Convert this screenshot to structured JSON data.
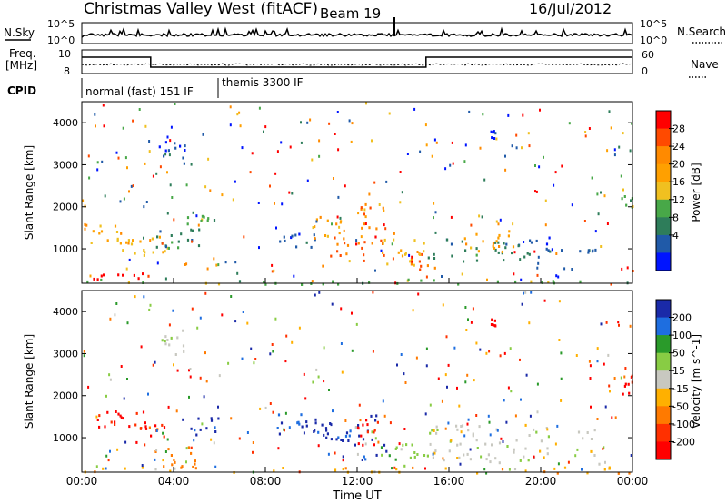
{
  "header": {
    "title": "Christmas Valley West (fitACF)",
    "beam": "Beam 19",
    "date": "16/Jul/2012"
  },
  "top_panels": {
    "nsky_label": "N.Sky",
    "nsky_ticks": [
      "10^5",
      "10^0"
    ],
    "nsearch_label": "N.Search",
    "nsearch_ticks": [
      "10^5",
      "10^0"
    ],
    "freq_label_1": "Freq.",
    "freq_label_2": "[MHz]",
    "freq_ticks": [
      "10",
      "8"
    ],
    "nave_label": "Nave",
    "nave_ticks": [
      "60",
      "0"
    ],
    "cpid_label": "CPID",
    "cpid_modes": [
      {
        "label": "normal (fast) 151 IF",
        "start_hour": 0.0
      },
      {
        "label": "themis 3300 IF",
        "start_hour": 6.0
      }
    ],
    "freq_steps": [
      {
        "start_hour": 0.0,
        "end_hour": 3.0,
        "level": "high"
      },
      {
        "start_hour": 3.0,
        "end_hour": 15.0,
        "level": "low"
      },
      {
        "start_hour": 15.0,
        "end_hour": 24.0,
        "level": "high"
      }
    ]
  },
  "chart_data": [
    {
      "type": "heatmap",
      "title": "",
      "xlabel": "Time UT",
      "ylabel": "Slant Range [km]",
      "xlim": [
        0,
        24
      ],
      "ylim": [
        180,
        4500
      ],
      "x_tick_labels": [
        "00:00",
        "04:00",
        "08:00",
        "12:00",
        "16:00",
        "20:00",
        "00:00"
      ],
      "y_tick_labels": [
        "1000",
        "2000",
        "3000",
        "4000"
      ],
      "colorbar": {
        "label": "Power [dB]",
        "tick_labels": [
          "28",
          "24",
          "20",
          "16",
          "12",
          "8",
          "4"
        ],
        "colors": [
          "#ff0000",
          "#ff4a00",
          "#ff8a00",
          "#ffa000",
          "#f0c020",
          "#48a848",
          "#2e7d5a",
          "#205aa8",
          "#0014ff"
        ]
      },
      "regions": [
        {
          "t0": 0.0,
          "t1": 2.8,
          "r0": 1150,
          "r1": 1650,
          "level": 3
        },
        {
          "t0": 0.3,
          "t1": 3.2,
          "r0": 300,
          "r1": 450,
          "level": 0
        },
        {
          "t0": 1.7,
          "t1": 3.8,
          "r0": 850,
          "r1": 1350,
          "level": 4
        },
        {
          "t0": 3.2,
          "t1": 5.6,
          "r0": 1050,
          "r1": 1500,
          "level": 6
        },
        {
          "t0": 3.3,
          "t1": 4.5,
          "r0": 3000,
          "r1": 3600,
          "level": 7
        },
        {
          "t0": 4.5,
          "t1": 6.0,
          "r0": 1550,
          "r1": 1900,
          "level": 5
        },
        {
          "t0": 0.0,
          "t1": 24.0,
          "r0": 180,
          "r1": 300,
          "level": 5
        },
        {
          "t0": 8.2,
          "t1": 10.2,
          "r0": 1050,
          "r1": 1400,
          "level": 7
        },
        {
          "t0": 10.0,
          "t1": 11.3,
          "r0": 1250,
          "r1": 1800,
          "level": 3
        },
        {
          "t0": 10.8,
          "t1": 13.2,
          "r0": 700,
          "r1": 1350,
          "level": 1
        },
        {
          "t0": 12.1,
          "t1": 13.2,
          "r0": 1500,
          "r1": 2150,
          "level": 2
        },
        {
          "t0": 13.0,
          "t1": 15.0,
          "r0": 650,
          "r1": 1250,
          "level": 4
        },
        {
          "t0": 14.2,
          "t1": 15.4,
          "r0": 500,
          "r1": 900,
          "level": 1
        },
        {
          "t0": 15.0,
          "t1": 19.5,
          "r0": 750,
          "r1": 1250,
          "level": 6
        },
        {
          "t0": 16.5,
          "t1": 18.8,
          "r0": 900,
          "r1": 1450,
          "level": 3
        },
        {
          "t0": 19.0,
          "t1": 22.5,
          "r0": 850,
          "r1": 1300,
          "level": 7
        },
        {
          "t0": 23.5,
          "t1": 24.0,
          "r0": 2000,
          "r1": 2500,
          "level": 5
        },
        {
          "t0": 17.8,
          "t1": 18.0,
          "r0": 3650,
          "r1": 3850,
          "level": 8
        }
      ]
    },
    {
      "type": "heatmap",
      "title": "",
      "xlabel": "Time UT",
      "ylabel": "Slant Range [km]",
      "xlim": [
        0,
        24
      ],
      "ylim": [
        180,
        4500
      ],
      "x_tick_labels": [
        "00:00",
        "04:00",
        "08:00",
        "12:00",
        "16:00",
        "20:00",
        "00:00"
      ],
      "y_tick_labels": [
        "1000",
        "2000",
        "3000",
        "4000"
      ],
      "colorbar": {
        "label": "Velocity [m s^-1]",
        "tick_labels": [
          "200",
          "100",
          "50",
          "15",
          "-15",
          "-50",
          "-100",
          "-200"
        ],
        "colors": [
          "#1a2aa8",
          "#1e6ee0",
          "#2a9a2a",
          "#88cc44",
          "#c8c8c0",
          "#ffb000",
          "#ff7a00",
          "#ff3000",
          "#ff0000"
        ]
      },
      "regions": [
        {
          "t0": 0.0,
          "t1": 2.8,
          "r0": 1150,
          "r1": 1650,
          "level": 8
        },
        {
          "t0": 1.7,
          "t1": 3.8,
          "r0": 850,
          "r1": 1350,
          "level": 7
        },
        {
          "t0": 3.0,
          "t1": 5.0,
          "r0": 300,
          "r1": 850,
          "level": 6
        },
        {
          "t0": 4.3,
          "t1": 6.0,
          "r0": 1050,
          "r1": 1500,
          "level": 0
        },
        {
          "t0": 3.3,
          "t1": 4.5,
          "r0": 3000,
          "r1": 3600,
          "level": 4
        },
        {
          "t0": 0.0,
          "t1": 24.0,
          "r0": 180,
          "r1": 330,
          "level": 5
        },
        {
          "t0": 8.2,
          "t1": 10.5,
          "r0": 1000,
          "r1": 1600,
          "level": 0
        },
        {
          "t0": 10.6,
          "t1": 13.3,
          "r0": 500,
          "r1": 1700,
          "level": 0
        },
        {
          "t0": 11.8,
          "t1": 13.0,
          "r0": 800,
          "r1": 1500,
          "level": 8
        },
        {
          "t0": 13.0,
          "t1": 15.0,
          "r0": 350,
          "r1": 900,
          "level": 3
        },
        {
          "t0": 15.0,
          "t1": 23.0,
          "r0": 400,
          "r1": 1350,
          "level": 4
        },
        {
          "t0": 23.5,
          "t1": 24.0,
          "r0": 2000,
          "r1": 2500,
          "level": 8
        },
        {
          "t0": 17.8,
          "t1": 18.0,
          "r0": 3650,
          "r1": 3850,
          "level": 8
        }
      ]
    }
  ]
}
